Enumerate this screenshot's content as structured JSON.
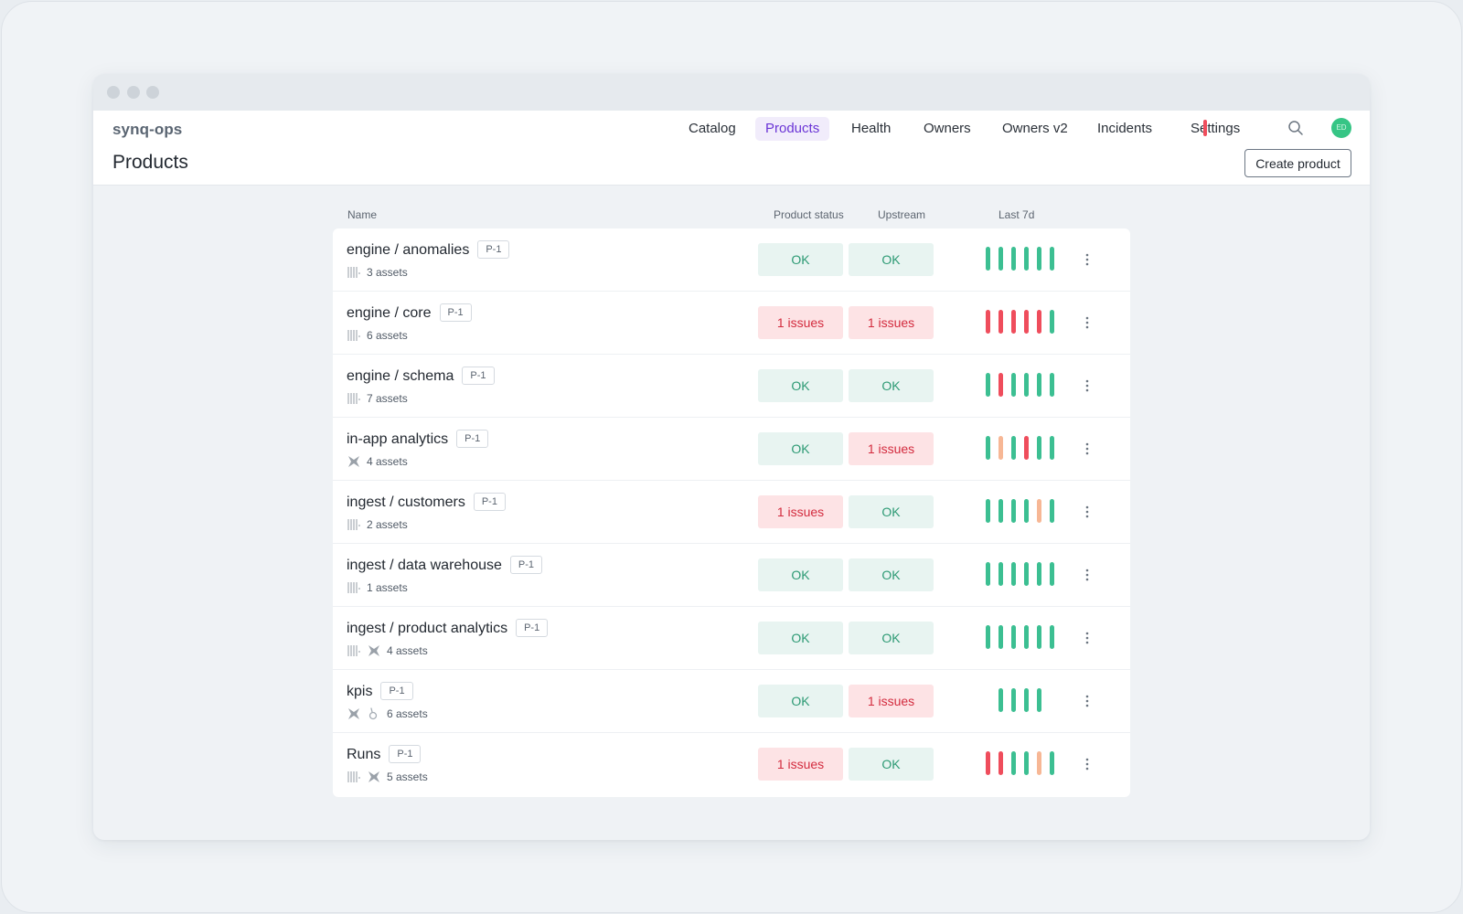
{
  "window": {
    "brand": "synq-ops"
  },
  "nav": [
    {
      "label": "Catalog",
      "active": false
    },
    {
      "label": "Products",
      "active": true
    },
    {
      "label": "Health",
      "active": false
    },
    {
      "label": "Owners",
      "active": false
    },
    {
      "label": "Owners v2",
      "active": false
    },
    {
      "label": "Incidents",
      "active": false
    },
    {
      "label": "Settings",
      "active": false
    }
  ],
  "avatar": {
    "initials": "ED",
    "color": "#36c585"
  },
  "page": {
    "title": "Products",
    "create_button": "Create product"
  },
  "table": {
    "columns": {
      "name": "Name",
      "product_status": "Product status",
      "upstream": "Upstream",
      "last7d": "Last 7d"
    },
    "rows": [
      {
        "name": "engine / anomalies",
        "tag": "P-1",
        "assets": "3 assets",
        "icons": [
          "dbt-icon"
        ],
        "status": "OK",
        "upstream": "OK",
        "last7d": [
          "ok",
          "ok",
          "ok",
          "ok",
          "ok",
          "ok"
        ]
      },
      {
        "name": "engine / core",
        "tag": "P-1",
        "assets": "6 assets",
        "icons": [
          "dbt-icon"
        ],
        "status": "1 issues",
        "upstream": "1 issues",
        "last7d": [
          "err",
          "err",
          "err",
          "err",
          "err",
          "ok"
        ]
      },
      {
        "name": "engine / schema",
        "tag": "P-1",
        "assets": "7 assets",
        "icons": [
          "dbt-icon"
        ],
        "status": "OK",
        "upstream": "OK",
        "last7d": [
          "ok",
          "err",
          "ok",
          "ok",
          "ok",
          "ok"
        ]
      },
      {
        "name": "in-app analytics",
        "tag": "P-1",
        "assets": "4 assets",
        "icons": [
          "bigquery-icon"
        ],
        "status": "OK",
        "upstream": "1 issues",
        "last7d": [
          "ok",
          "warn",
          "ok",
          "err",
          "ok",
          "ok"
        ]
      },
      {
        "name": "ingest / customers",
        "tag": "P-1",
        "assets": "2 assets",
        "icons": [
          "dbt-icon"
        ],
        "status": "1 issues",
        "upstream": "OK",
        "last7d": [
          "ok",
          "ok",
          "ok",
          "ok",
          "warn",
          "ok"
        ]
      },
      {
        "name": "ingest / data warehouse",
        "tag": "P-1",
        "assets": "1 assets",
        "icons": [
          "dbt-icon"
        ],
        "status": "OK",
        "upstream": "OK",
        "last7d": [
          "ok",
          "ok",
          "ok",
          "ok",
          "ok",
          "ok"
        ]
      },
      {
        "name": "ingest / product analytics",
        "tag": "P-1",
        "assets": "4 assets",
        "icons": [
          "dbt-icon",
          "bigquery-icon"
        ],
        "status": "OK",
        "upstream": "OK",
        "last7d": [
          "ok",
          "ok",
          "ok",
          "ok",
          "ok",
          "ok"
        ]
      },
      {
        "name": "kpis",
        "tag": "P-1",
        "assets": "6 assets",
        "icons": [
          "bigquery-icon",
          "looker-icon"
        ],
        "status": "OK",
        "upstream": "1 issues",
        "last7d": [
          "ok",
          "ok",
          "ok",
          "ok"
        ]
      },
      {
        "name": "Runs",
        "tag": "P-1",
        "assets": "5 assets",
        "icons": [
          "dbt-icon",
          "bigquery-icon"
        ],
        "status": "1 issues",
        "upstream": "OK",
        "last7d": [
          "err",
          "err",
          "ok",
          "ok",
          "warn",
          "ok"
        ]
      }
    ]
  },
  "colors": {
    "ok": "#3cbf92",
    "err": "#ef4d5c",
    "warn": "#f7b795",
    "accent": "#6b35d6"
  }
}
